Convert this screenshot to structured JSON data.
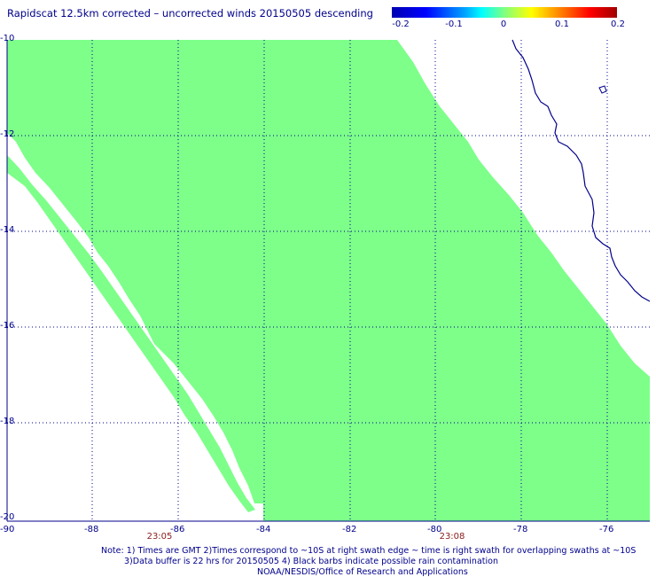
{
  "title": "Rapidscat 12.5km corrected – uncorrected winds 20150505 descending",
  "colorbar": {
    "colors": [
      "#0000b0",
      "#0000ff",
      "#00aaff",
      "#00ffff",
      "#80ff80",
      "#ffff00",
      "#ff8000",
      "#ff0000",
      "#a00000"
    ],
    "ticks": [
      "-0.2",
      "-0.1",
      "0",
      "0.1",
      "0.2"
    ]
  },
  "map": {
    "lon_range": [
      -90,
      -75
    ],
    "lat_range": [
      -10,
      -20
    ],
    "lon_labels": [
      "-90",
      "-88",
      "-86",
      "-84",
      "-82",
      "-80",
      "-78",
      "-76"
    ],
    "lat_labels": [
      "-10",
      "-12",
      "-14",
      "-16",
      "-18",
      "-20"
    ],
    "swath_color": "#7dff8a",
    "coast_color": "#00008b"
  },
  "time_labels": [
    "23:05",
    "23:08"
  ],
  "notes": [
    "Note: 1) Times are GMT 2)Times correspond to ~10S at right swath edge ~ time is right swath for overlapping swaths at ~10S",
    "3)Data buffer is 22 hrs for 20150505 4) Black barbs indicate possible rain contamination",
    "NOAA/NESDIS/Office of Research and Applications"
  ]
}
